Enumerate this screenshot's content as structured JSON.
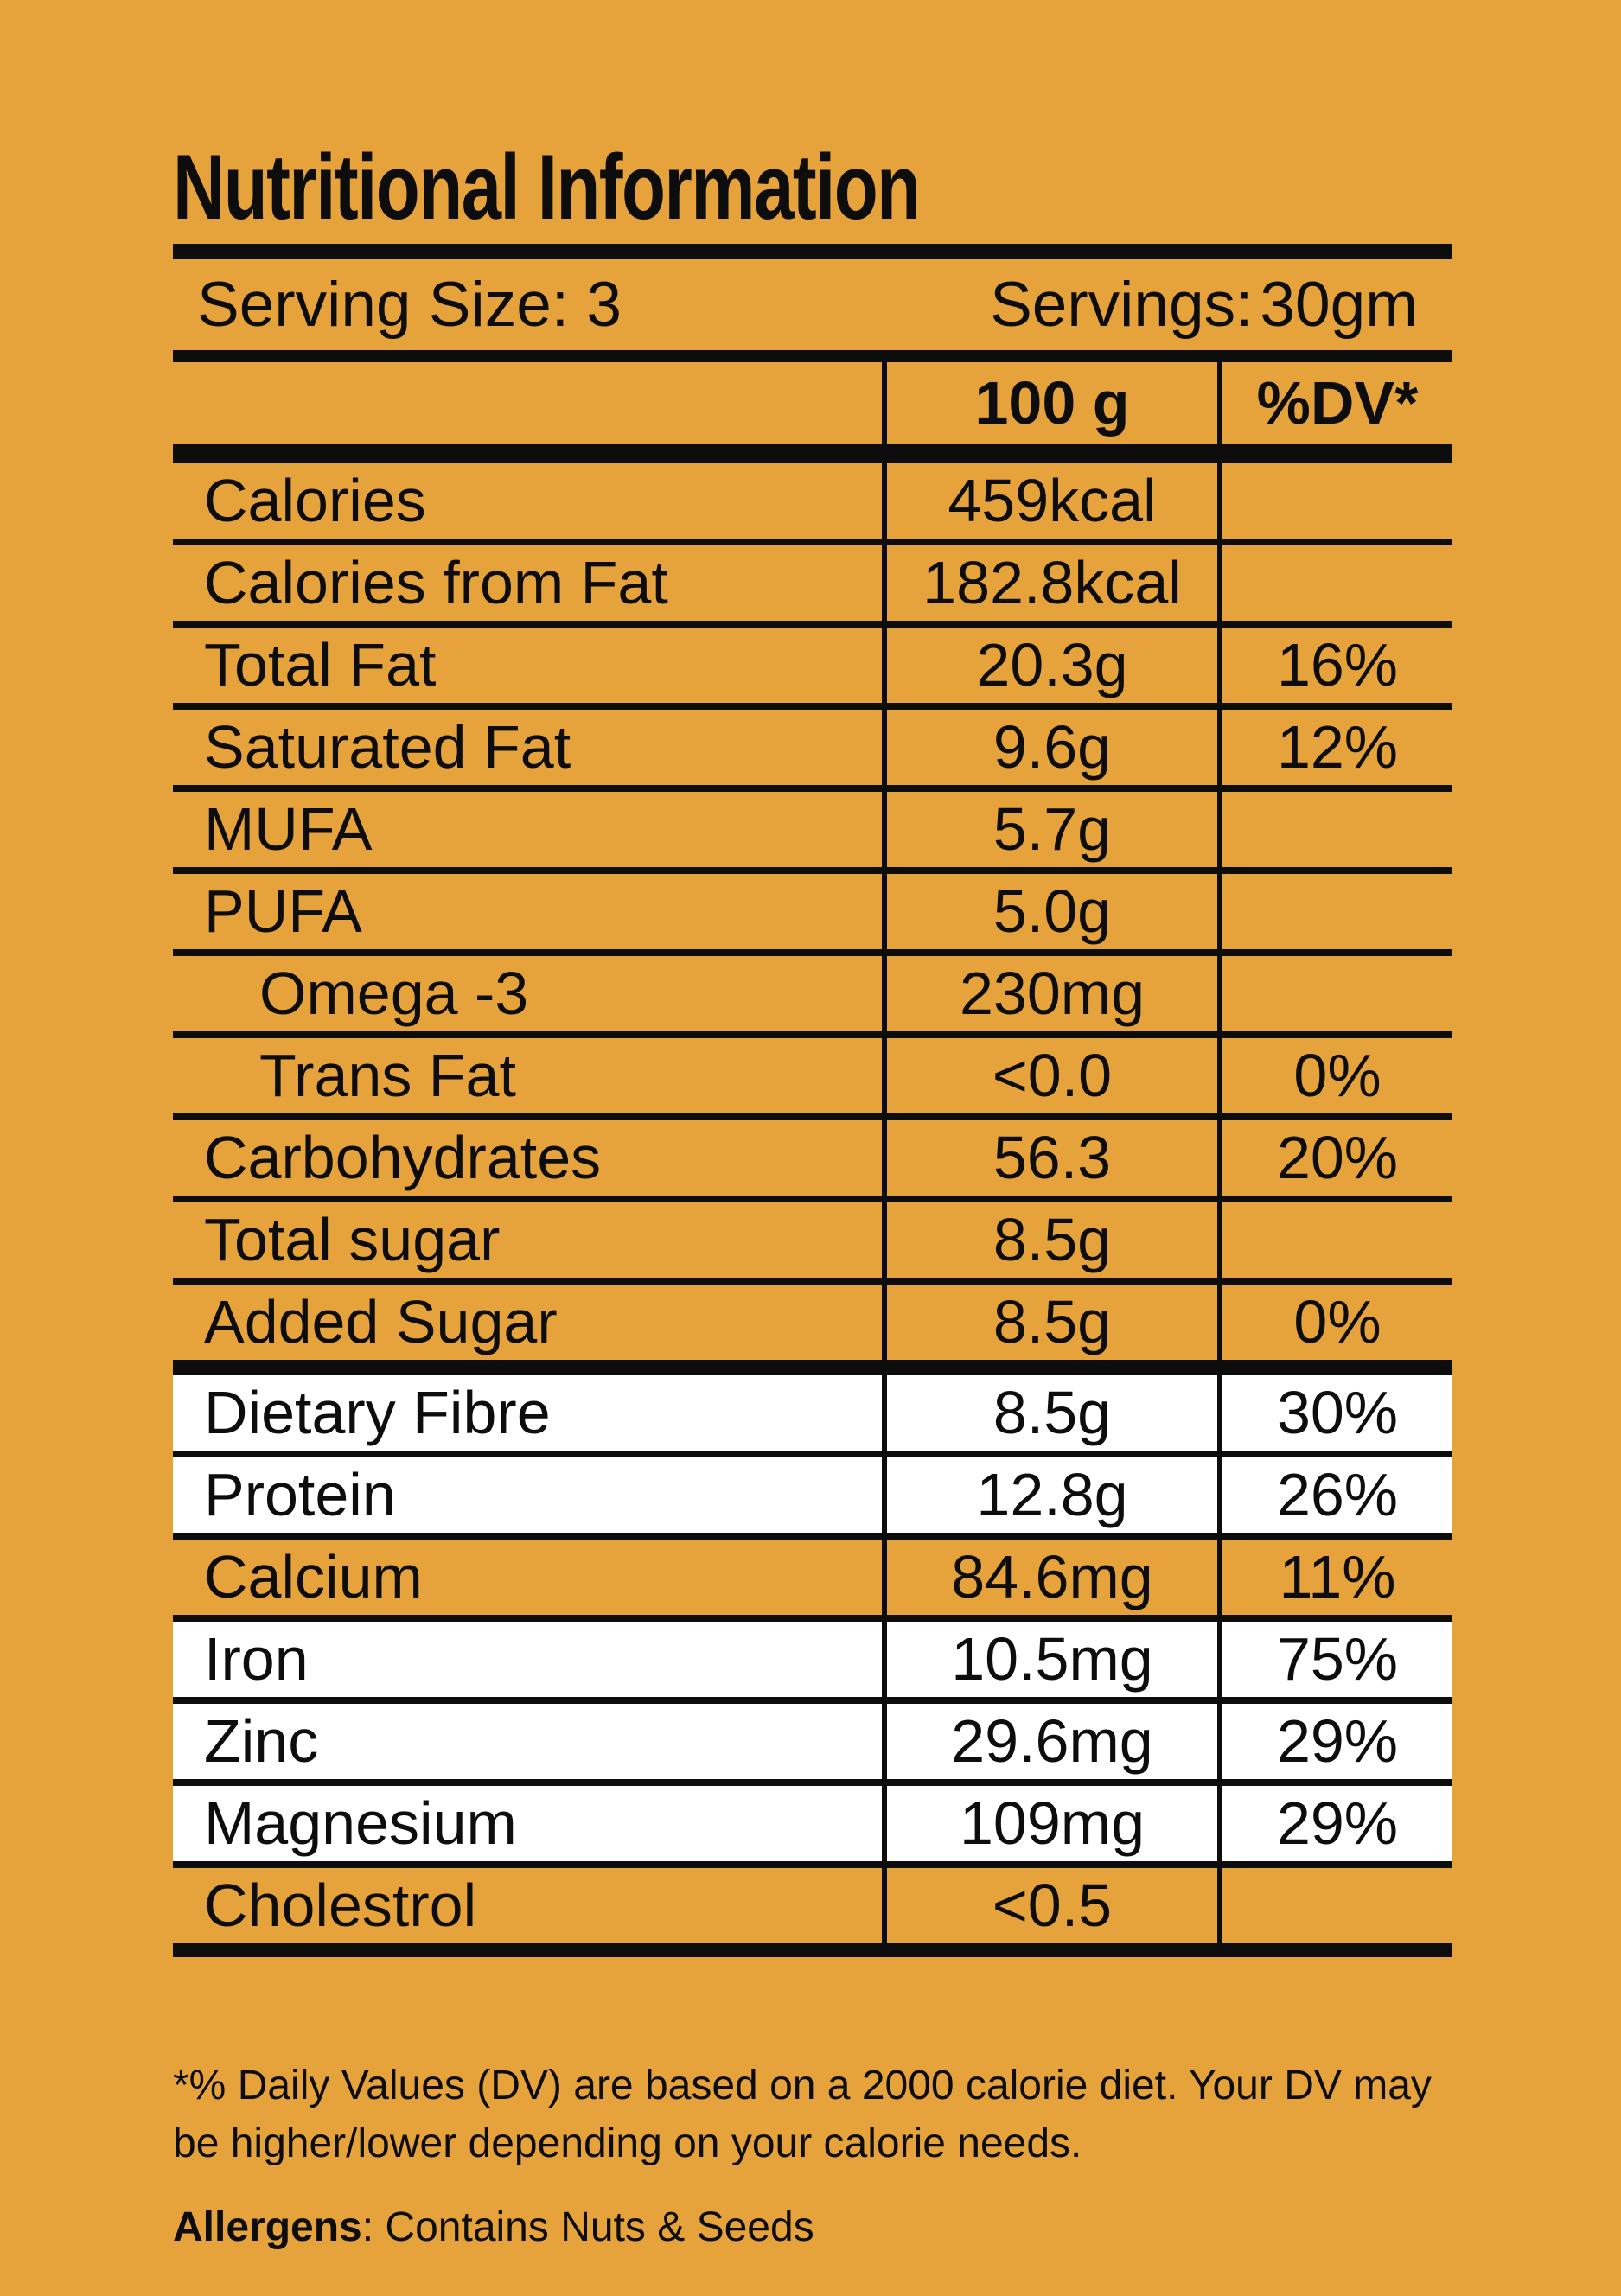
{
  "colors": {
    "background": "#E6A33C",
    "ink": "#0D0D0D",
    "row_highlight": "#FFFFFF"
  },
  "title": "Nutritional Information",
  "serving": {
    "size_text": "Serving Size: 3",
    "servings_label": "Servings:",
    "servings_value": "30gm"
  },
  "table": {
    "columns": {
      "amount": "100 g",
      "dv": "%DV*"
    },
    "rows": [
      {
        "label": "Calories",
        "amount": "459kcal",
        "dv": "",
        "indent": false,
        "highlight": false,
        "section_end": false,
        "last": false
      },
      {
        "label": "Calories from Fat",
        "amount": "182.8kcal",
        "dv": "",
        "indent": false,
        "highlight": false,
        "section_end": false,
        "last": false
      },
      {
        "label": "Total Fat",
        "amount": "20.3g",
        "dv": "16%",
        "indent": false,
        "highlight": false,
        "section_end": false,
        "last": false
      },
      {
        "label": "Saturated Fat",
        "amount": "9.6g",
        "dv": "12%",
        "indent": false,
        "highlight": false,
        "section_end": false,
        "last": false
      },
      {
        "label": "MUFA",
        "amount": "5.7g",
        "dv": "",
        "indent": false,
        "highlight": false,
        "section_end": false,
        "last": false
      },
      {
        "label": "PUFA",
        "amount": "5.0g",
        "dv": "",
        "indent": false,
        "highlight": false,
        "section_end": false,
        "last": false
      },
      {
        "label": "Omega -3",
        "amount": "230mg",
        "dv": "",
        "indent": true,
        "highlight": false,
        "section_end": false,
        "last": false
      },
      {
        "label": "Trans Fat",
        "amount": "<0.0",
        "dv": "0%",
        "indent": true,
        "highlight": false,
        "section_end": false,
        "last": false
      },
      {
        "label": "Carbohydrates",
        "amount": "56.3",
        "dv": "20%",
        "indent": false,
        "highlight": false,
        "section_end": false,
        "last": false
      },
      {
        "label": "Total sugar",
        "amount": "8.5g",
        "dv": "",
        "indent": false,
        "highlight": false,
        "section_end": false,
        "last": false
      },
      {
        "label": "Added Sugar",
        "amount": "8.5g",
        "dv": "0%",
        "indent": false,
        "highlight": false,
        "section_end": true,
        "last": false
      },
      {
        "label": "Dietary Fibre",
        "amount": "8.5g",
        "dv": "30%",
        "indent": false,
        "highlight": true,
        "section_end": false,
        "last": false
      },
      {
        "label": "Protein",
        "amount": "12.8g",
        "dv": "26%",
        "indent": false,
        "highlight": true,
        "section_end": false,
        "last": false
      },
      {
        "label": "Calcium",
        "amount": "84.6mg",
        "dv": "11%",
        "indent": false,
        "highlight": false,
        "section_end": false,
        "last": false
      },
      {
        "label": "Iron",
        "amount": "10.5mg",
        "dv": "75%",
        "indent": false,
        "highlight": true,
        "section_end": false,
        "last": false
      },
      {
        "label": "Zinc",
        "amount": "29.6mg",
        "dv": "29%",
        "indent": false,
        "highlight": true,
        "section_end": false,
        "last": false
      },
      {
        "label": "Magnesium",
        "amount": "109mg",
        "dv": "29%",
        "indent": false,
        "highlight": true,
        "section_end": false,
        "last": false
      },
      {
        "label": "Cholestrol",
        "amount": "<0.5",
        "dv": "",
        "indent": false,
        "highlight": false,
        "section_end": false,
        "last": true
      }
    ]
  },
  "footnote": {
    "lines": [
      "*% Daily Values (DV) are based on a 2000 calorie diet. Your DV may",
      "be higher/lower depending on your calorie needs."
    ]
  },
  "allergens": {
    "label": "Allergens",
    "text": ": Contains Nuts & Seeds"
  }
}
